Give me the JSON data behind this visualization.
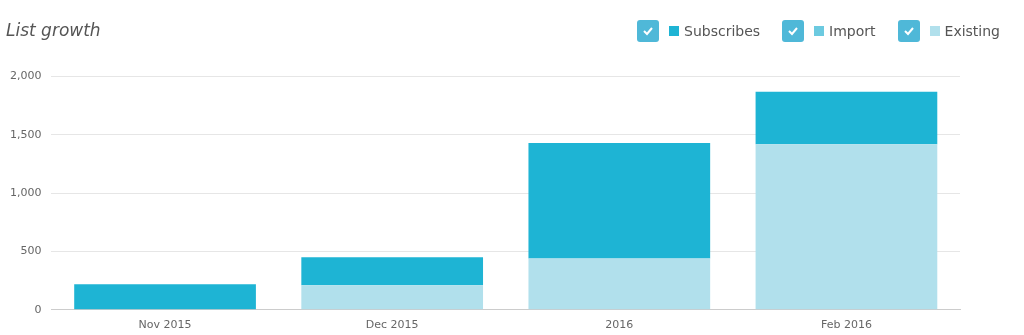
{
  "chart_data": {
    "type": "bar",
    "title": "List growth",
    "stacked": true,
    "legend": "top right",
    "grid": "y",
    "categories": [
      "Nov 2015",
      "Dec 2015",
      "2016",
      "Feb 2016"
    ],
    "series": [
      {
        "name": "Existing",
        "color": "#b1e0ec",
        "values": [
          0,
          210,
          440,
          1420
        ]
      },
      {
        "name": "Import",
        "color": "#6ccae0",
        "values": [
          0,
          0,
          0,
          0
        ]
      },
      {
        "name": "Subscribes",
        "color": "#1eb4d4",
        "values": [
          220,
          240,
          990,
          450
        ]
      }
    ],
    "ylim": [
      0,
      2000
    ],
    "yticks": [
      {
        "value": 0,
        "label": "0"
      },
      {
        "value": 500,
        "label": "500"
      },
      {
        "value": 1000,
        "label": "1,000"
      },
      {
        "value": 1500,
        "label": "1,500"
      },
      {
        "value": 2000,
        "label": "2,000"
      }
    ]
  }
}
